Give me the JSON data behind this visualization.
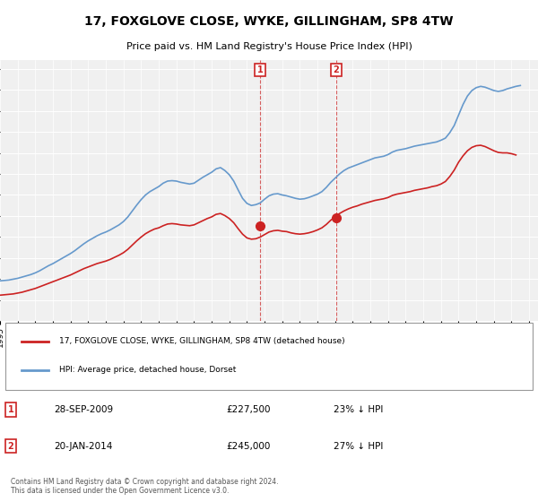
{
  "title": "17, FOXGLOVE CLOSE, WYKE, GILLINGHAM, SP8 4TW",
  "subtitle": "Price paid vs. HM Land Registry's House Price Index (HPI)",
  "ylabel_format": "£{0}K",
  "ylim": [
    0,
    620000
  ],
  "yticks": [
    0,
    50000,
    100000,
    150000,
    200000,
    250000,
    300000,
    350000,
    400000,
    450000,
    500000,
    550000,
    600000
  ],
  "xlim_start": 1995.0,
  "xlim_end": 2025.5,
  "background_color": "#ffffff",
  "plot_bg_color": "#f0f0f0",
  "hpi_color": "#6699cc",
  "price_color": "#cc2222",
  "sale1_date": 2009.74,
  "sale1_price": 227500,
  "sale1_label": "1",
  "sale2_date": 2014.05,
  "sale2_price": 245000,
  "sale2_label": "2",
  "legend_label_price": "17, FOXGLOVE CLOSE, WYKE, GILLINGHAM, SP8 4TW (detached house)",
  "legend_label_hpi": "HPI: Average price, detached house, Dorset",
  "table_row1": [
    "1",
    "28-SEP-2009",
    "£227,500",
    "23% ↓ HPI"
  ],
  "table_row2": [
    "2",
    "20-JAN-2014",
    "£245,000",
    "27% ↓ HPI"
  ],
  "footer": "Contains HM Land Registry data © Crown copyright and database right 2024.\nThis data is licensed under the Open Government Licence v3.0.",
  "hpi_data_x": [
    1995.0,
    1995.25,
    1995.5,
    1995.75,
    1996.0,
    1996.25,
    1996.5,
    1996.75,
    1997.0,
    1997.25,
    1997.5,
    1997.75,
    1998.0,
    1998.25,
    1998.5,
    1998.75,
    1999.0,
    1999.25,
    1999.5,
    1999.75,
    2000.0,
    2000.25,
    2000.5,
    2000.75,
    2001.0,
    2001.25,
    2001.5,
    2001.75,
    2002.0,
    2002.25,
    2002.5,
    2002.75,
    2003.0,
    2003.25,
    2003.5,
    2003.75,
    2004.0,
    2004.25,
    2004.5,
    2004.75,
    2005.0,
    2005.25,
    2005.5,
    2005.75,
    2006.0,
    2006.25,
    2006.5,
    2006.75,
    2007.0,
    2007.25,
    2007.5,
    2007.75,
    2008.0,
    2008.25,
    2008.5,
    2008.75,
    2009.0,
    2009.25,
    2009.5,
    2009.75,
    2010.0,
    2010.25,
    2010.5,
    2010.75,
    2011.0,
    2011.25,
    2011.5,
    2011.75,
    2012.0,
    2012.25,
    2012.5,
    2012.75,
    2013.0,
    2013.25,
    2013.5,
    2013.75,
    2014.0,
    2014.25,
    2014.5,
    2014.75,
    2015.0,
    2015.25,
    2015.5,
    2015.75,
    2016.0,
    2016.25,
    2016.5,
    2016.75,
    2017.0,
    2017.25,
    2017.5,
    2017.75,
    2018.0,
    2018.25,
    2018.5,
    2018.75,
    2019.0,
    2019.25,
    2019.5,
    2019.75,
    2020.0,
    2020.25,
    2020.5,
    2020.75,
    2021.0,
    2021.25,
    2021.5,
    2021.75,
    2022.0,
    2022.25,
    2022.5,
    2022.75,
    2023.0,
    2023.25,
    2023.5,
    2023.75,
    2024.0,
    2024.25,
    2024.5
  ],
  "hpi_data_y": [
    96000,
    97000,
    98000,
    100000,
    102000,
    105000,
    108000,
    111000,
    115000,
    120000,
    126000,
    132000,
    137000,
    143000,
    149000,
    155000,
    161000,
    168000,
    176000,
    184000,
    191000,
    197000,
    203000,
    208000,
    212000,
    217000,
    223000,
    229000,
    237000,
    248000,
    262000,
    276000,
    289000,
    300000,
    308000,
    314000,
    320000,
    328000,
    333000,
    334000,
    333000,
    330000,
    328000,
    326000,
    328000,
    335000,
    342000,
    348000,
    354000,
    362000,
    365000,
    358000,
    348000,
    333000,
    312000,
    292000,
    280000,
    275000,
    277000,
    281000,
    290000,
    298000,
    302000,
    303000,
    300000,
    298000,
    295000,
    292000,
    290000,
    291000,
    294000,
    298000,
    302000,
    308000,
    318000,
    330000,
    340000,
    350000,
    358000,
    364000,
    368000,
    372000,
    376000,
    380000,
    384000,
    388000,
    390000,
    392000,
    396000,
    402000,
    406000,
    408000,
    410000,
    413000,
    416000,
    418000,
    420000,
    422000,
    424000,
    426000,
    430000,
    435000,
    448000,
    465000,
    490000,
    515000,
    535000,
    548000,
    555000,
    558000,
    556000,
    552000,
    548000,
    546000,
    548000,
    552000,
    555000,
    558000,
    560000
  ],
  "price_data_x": [
    1995.0,
    1995.25,
    1995.5,
    1995.75,
    1996.0,
    1996.25,
    1996.5,
    1996.75,
    1997.0,
    1997.25,
    1997.5,
    1997.75,
    1998.0,
    1998.25,
    1998.5,
    1998.75,
    1999.0,
    1999.25,
    1999.5,
    1999.75,
    2000.0,
    2000.25,
    2000.5,
    2000.75,
    2001.0,
    2001.25,
    2001.5,
    2001.75,
    2002.0,
    2002.25,
    2002.5,
    2002.75,
    2003.0,
    2003.25,
    2003.5,
    2003.75,
    2004.0,
    2004.25,
    2004.5,
    2004.75,
    2005.0,
    2005.25,
    2005.5,
    2005.75,
    2006.0,
    2006.25,
    2006.5,
    2006.75,
    2007.0,
    2007.25,
    2007.5,
    2007.75,
    2008.0,
    2008.25,
    2008.5,
    2008.75,
    2009.0,
    2009.25,
    2009.5,
    2009.75,
    2010.0,
    2010.25,
    2010.5,
    2010.75,
    2011.0,
    2011.25,
    2011.5,
    2011.75,
    2012.0,
    2012.25,
    2012.5,
    2012.75,
    2013.0,
    2013.25,
    2013.5,
    2013.75,
    2014.0,
    2014.25,
    2014.5,
    2014.75,
    2015.0,
    2015.25,
    2015.5,
    2015.75,
    2016.0,
    2016.25,
    2016.5,
    2016.75,
    2017.0,
    2017.25,
    2017.5,
    2017.75,
    2018.0,
    2018.25,
    2018.5,
    2018.75,
    2019.0,
    2019.25,
    2019.5,
    2019.75,
    2020.0,
    2020.25,
    2020.5,
    2020.75,
    2021.0,
    2021.25,
    2021.5,
    2021.75,
    2022.0,
    2022.25,
    2022.5,
    2022.75,
    2023.0,
    2023.25,
    2023.5,
    2023.75,
    2024.0,
    2024.25
  ],
  "price_data_y": [
    62000,
    63000,
    64000,
    65000,
    67000,
    69000,
    72000,
    75000,
    78000,
    82000,
    86000,
    90000,
    94000,
    98000,
    102000,
    106000,
    110000,
    115000,
    120000,
    125000,
    129000,
    133000,
    137000,
    140000,
    143000,
    147000,
    152000,
    157000,
    163000,
    171000,
    181000,
    191000,
    200000,
    208000,
    214000,
    219000,
    222000,
    227000,
    231000,
    232000,
    231000,
    229000,
    228000,
    227000,
    229000,
    234000,
    239000,
    244000,
    248000,
    254000,
    256000,
    251000,
    244000,
    234000,
    220000,
    207000,
    198000,
    195000,
    196000,
    200000,
    206000,
    212000,
    215000,
    216000,
    214000,
    213000,
    210000,
    208000,
    207000,
    208000,
    210000,
    213000,
    217000,
    222000,
    230000,
    240000,
    248000,
    256000,
    262000,
    267000,
    271000,
    274000,
    278000,
    281000,
    284000,
    287000,
    289000,
    291000,
    294000,
    299000,
    302000,
    304000,
    306000,
    308000,
    311000,
    313000,
    315000,
    317000,
    320000,
    322000,
    326000,
    332000,
    344000,
    359000,
    378000,
    393000,
    405000,
    413000,
    417000,
    418000,
    415000,
    410000,
    405000,
    401000,
    400000,
    400000,
    398000,
    395000
  ]
}
